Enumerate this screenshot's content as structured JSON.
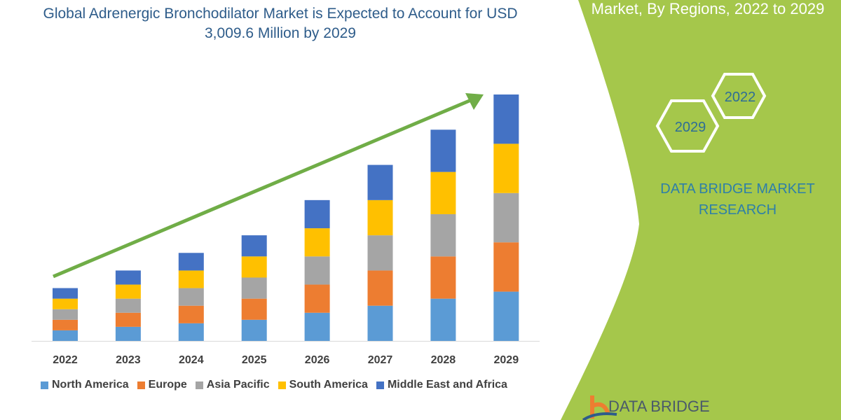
{
  "title": "Global Adrenergic Bronchodilator Market is Expected to Account for USD 3,009.6 Million by 2029",
  "right_panel": {
    "title": "Market, By Regions, 2022 to 2029",
    "hex_years": [
      "2022",
      "2029"
    ],
    "brand": "DATA BRIDGE MARKET RESEARCH",
    "logo_text": "DATA BRIDGE",
    "panel_color": "#a5c74b"
  },
  "chart_data": {
    "type": "bar",
    "stacked": true,
    "title": "Global Adrenergic Bronchodilator Market is Expected to Account for USD 3,009.6 Million by 2029",
    "xlabel": "",
    "ylabel": "",
    "categories": [
      "2022",
      "2023",
      "2024",
      "2025",
      "2026",
      "2027",
      "2028",
      "2029"
    ],
    "series": [
      {
        "name": "North America",
        "color": "#5b9bd5",
        "values": [
          129,
          172,
          215,
          258,
          344,
          430,
          516,
          602
        ]
      },
      {
        "name": "Europe",
        "color": "#ed7d31",
        "values": [
          129,
          172,
          215,
          258,
          344,
          430,
          516,
          602
        ]
      },
      {
        "name": "Asia Pacific",
        "color": "#a5a5a5",
        "values": [
          129,
          172,
          215,
          258,
          344,
          430,
          516,
          602
        ]
      },
      {
        "name": "South America",
        "color": "#ffc000",
        "values": [
          129,
          172,
          215,
          258,
          344,
          430,
          516,
          602
        ]
      },
      {
        "name": "Middle East and Africa",
        "color": "#4472c4",
        "values": [
          129,
          172,
          215,
          258,
          344,
          430,
          516,
          602
        ]
      }
    ],
    "ylim": [
      0,
      3010
    ],
    "grid": false,
    "legend": "bottom",
    "trend_arrow_color": "#70ad47"
  }
}
